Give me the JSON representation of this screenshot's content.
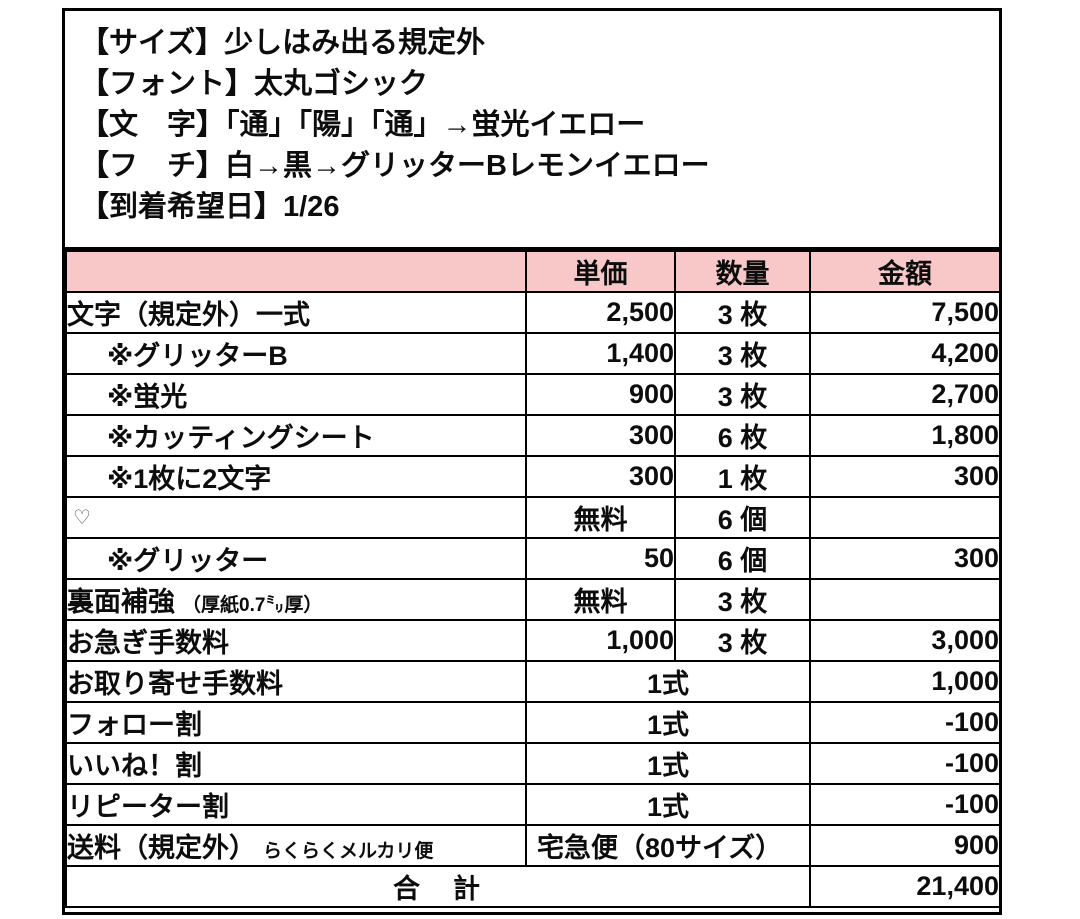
{
  "colors": {
    "header_pink": "#f8c8c8",
    "accent_red": "#ee1111",
    "border": "#000000",
    "text": "#0d0d0d"
  },
  "spec": {
    "lines": [
      "【サイズ】少しはみ出る規定外",
      "【フォント】太丸ゴシック",
      "【文　字】「通」「陽」「通」→蛍光イエロー",
      "【フ　チ】白→黒→グリッターBレモンイエロー",
      "【到着希望日】1/26"
    ]
  },
  "table": {
    "headers": {
      "item": "",
      "unit_price": "単価",
      "qty": "数量",
      "amount": "金額"
    },
    "rows": [
      {
        "label": "文字（規定外）一式",
        "price": "2,500",
        "qty": "3 枚",
        "amount": "7,500"
      },
      {
        "label": "※グリッターB",
        "indent": true,
        "price": "1,400",
        "qty": "3 枚",
        "amount": "4,200"
      },
      {
        "label": "※蛍光",
        "indent": true,
        "price": "900",
        "qty": "3 枚",
        "amount": "2,700"
      },
      {
        "label": "※カッティングシート",
        "indent": true,
        "price": "300",
        "qty": "6 枚",
        "amount": "1,800"
      },
      {
        "label": "※1枚に2文字",
        "indent": true,
        "price": "300",
        "qty": "1 枚",
        "amount": "300"
      },
      {
        "label": "♡",
        "heart": true,
        "price": "無料",
        "price_align": "center",
        "qty": "6 個",
        "amount": ""
      },
      {
        "label": "※グリッター",
        "indent": true,
        "price": "50",
        "qty": "6 個",
        "amount": "300"
      },
      {
        "label": "裏面補強",
        "note": "（厚紙0.7㍉厚）",
        "price": "無料",
        "price_align": "center",
        "qty": "3 枚",
        "amount": ""
      },
      {
        "label": "お急ぎ手数料",
        "price": "1,000",
        "qty": "3 枚",
        "amount": "3,000"
      },
      {
        "label": "お取り寄せ手数料",
        "span": "1式",
        "amount": "1,000"
      },
      {
        "label": "フォロー割",
        "span": "1式",
        "amount": "-100",
        "amount_red": true
      },
      {
        "label": "いいね！割",
        "span": "1式",
        "amount": "-100",
        "amount_red": true
      },
      {
        "label": "リピーター割",
        "span": "1式",
        "amount": "-100",
        "amount_red": true
      },
      {
        "label": "送料（規定外）",
        "note": "らくらくメルカリ便",
        "span": "宅急便（80サイズ）",
        "span_align": "left",
        "amount": "900"
      }
    ],
    "total": {
      "label": "合　計",
      "amount": "21,400"
    }
  }
}
